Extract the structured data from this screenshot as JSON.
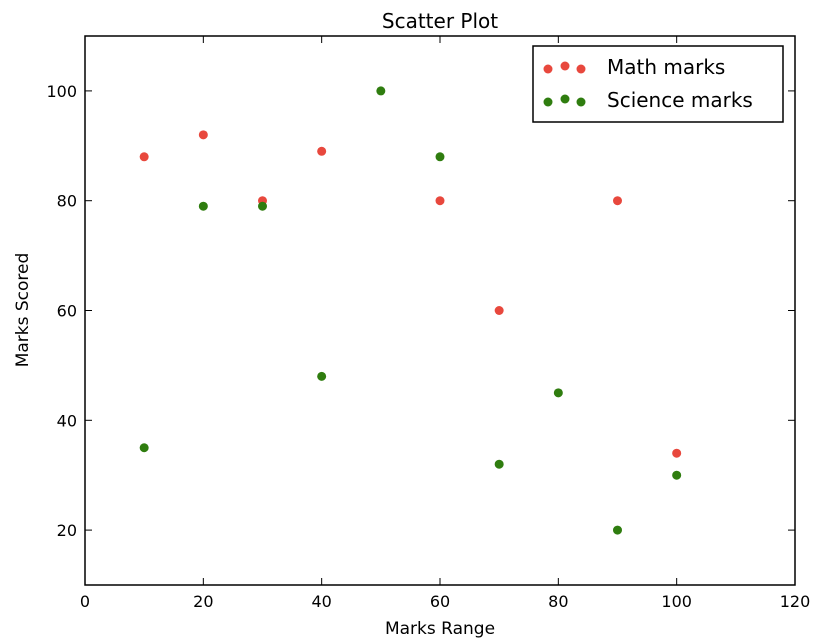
{
  "chart_data": {
    "type": "scatter",
    "title": "Scatter Plot",
    "xlabel": "Marks Range",
    "ylabel": "Marks Scored",
    "xlim": [
      0,
      120
    ],
    "ylim": [
      10,
      110
    ],
    "xticks": [
      0,
      20,
      40,
      60,
      80,
      100,
      120
    ],
    "yticks": [
      20,
      40,
      60,
      80,
      100
    ],
    "grid": false,
    "legend_position": "top-right",
    "series": [
      {
        "name": "Math marks",
        "color": "#e8483d",
        "x": [
          10,
          20,
          30,
          40,
          60,
          70,
          90,
          100
        ],
        "y": [
          88,
          92,
          80,
          89,
          80,
          60,
          80,
          34
        ]
      },
      {
        "name": "Science marks",
        "color": "#2f7d0f",
        "x": [
          10,
          20,
          30,
          40,
          50,
          60,
          70,
          80,
          90,
          100
        ],
        "y": [
          35,
          79,
          79,
          48,
          100,
          88,
          32,
          45,
          20,
          30
        ]
      }
    ]
  }
}
